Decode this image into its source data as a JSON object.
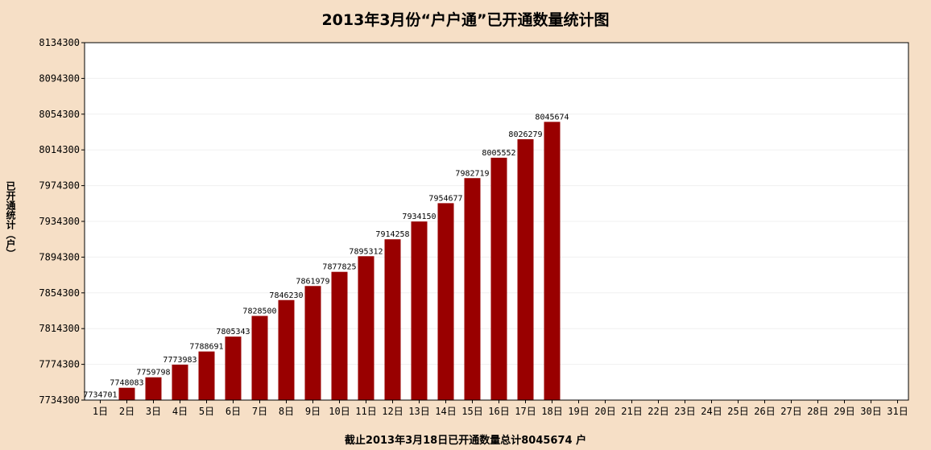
{
  "chart_data": {
    "type": "bar",
    "title": "2013年3月份“户户通”已开通数量统计图",
    "xlabel": "截止2013年3月18日已开通数量总计8045674 户",
    "ylabel": "已开通统计（户）",
    "categories": [
      "1日",
      "2日",
      "3日",
      "4日",
      "5日",
      "6日",
      "7日",
      "8日",
      "9日",
      "10日",
      "11日",
      "12日",
      "13日",
      "14日",
      "15日",
      "16日",
      "17日",
      "18日",
      "19日",
      "20日",
      "21日",
      "22日",
      "23日",
      "24日",
      "25日",
      "26日",
      "27日",
      "28日",
      "29日",
      "30日",
      "31日"
    ],
    "values": [
      7734701,
      7748083,
      7759798,
      7773983,
      7788691,
      7805343,
      7828500,
      7846230,
      7861979,
      7877825,
      7895312,
      7914258,
      7934150,
      7954677,
      7982719,
      8005552,
      8026279,
      8045674,
      null,
      null,
      null,
      null,
      null,
      null,
      null,
      null,
      null,
      null,
      null,
      null,
      null
    ],
    "ylim": [
      7734300,
      8134300
    ],
    "yticks": [
      7734300,
      7774300,
      7814300,
      7854300,
      7894300,
      7934300,
      7974300,
      8014300,
      8054300,
      8094300,
      8134300
    ],
    "grid": true,
    "legend": "none",
    "colors": {
      "bar": "#990000",
      "background": "#f6dfc6",
      "plot": "#ffffff"
    }
  }
}
